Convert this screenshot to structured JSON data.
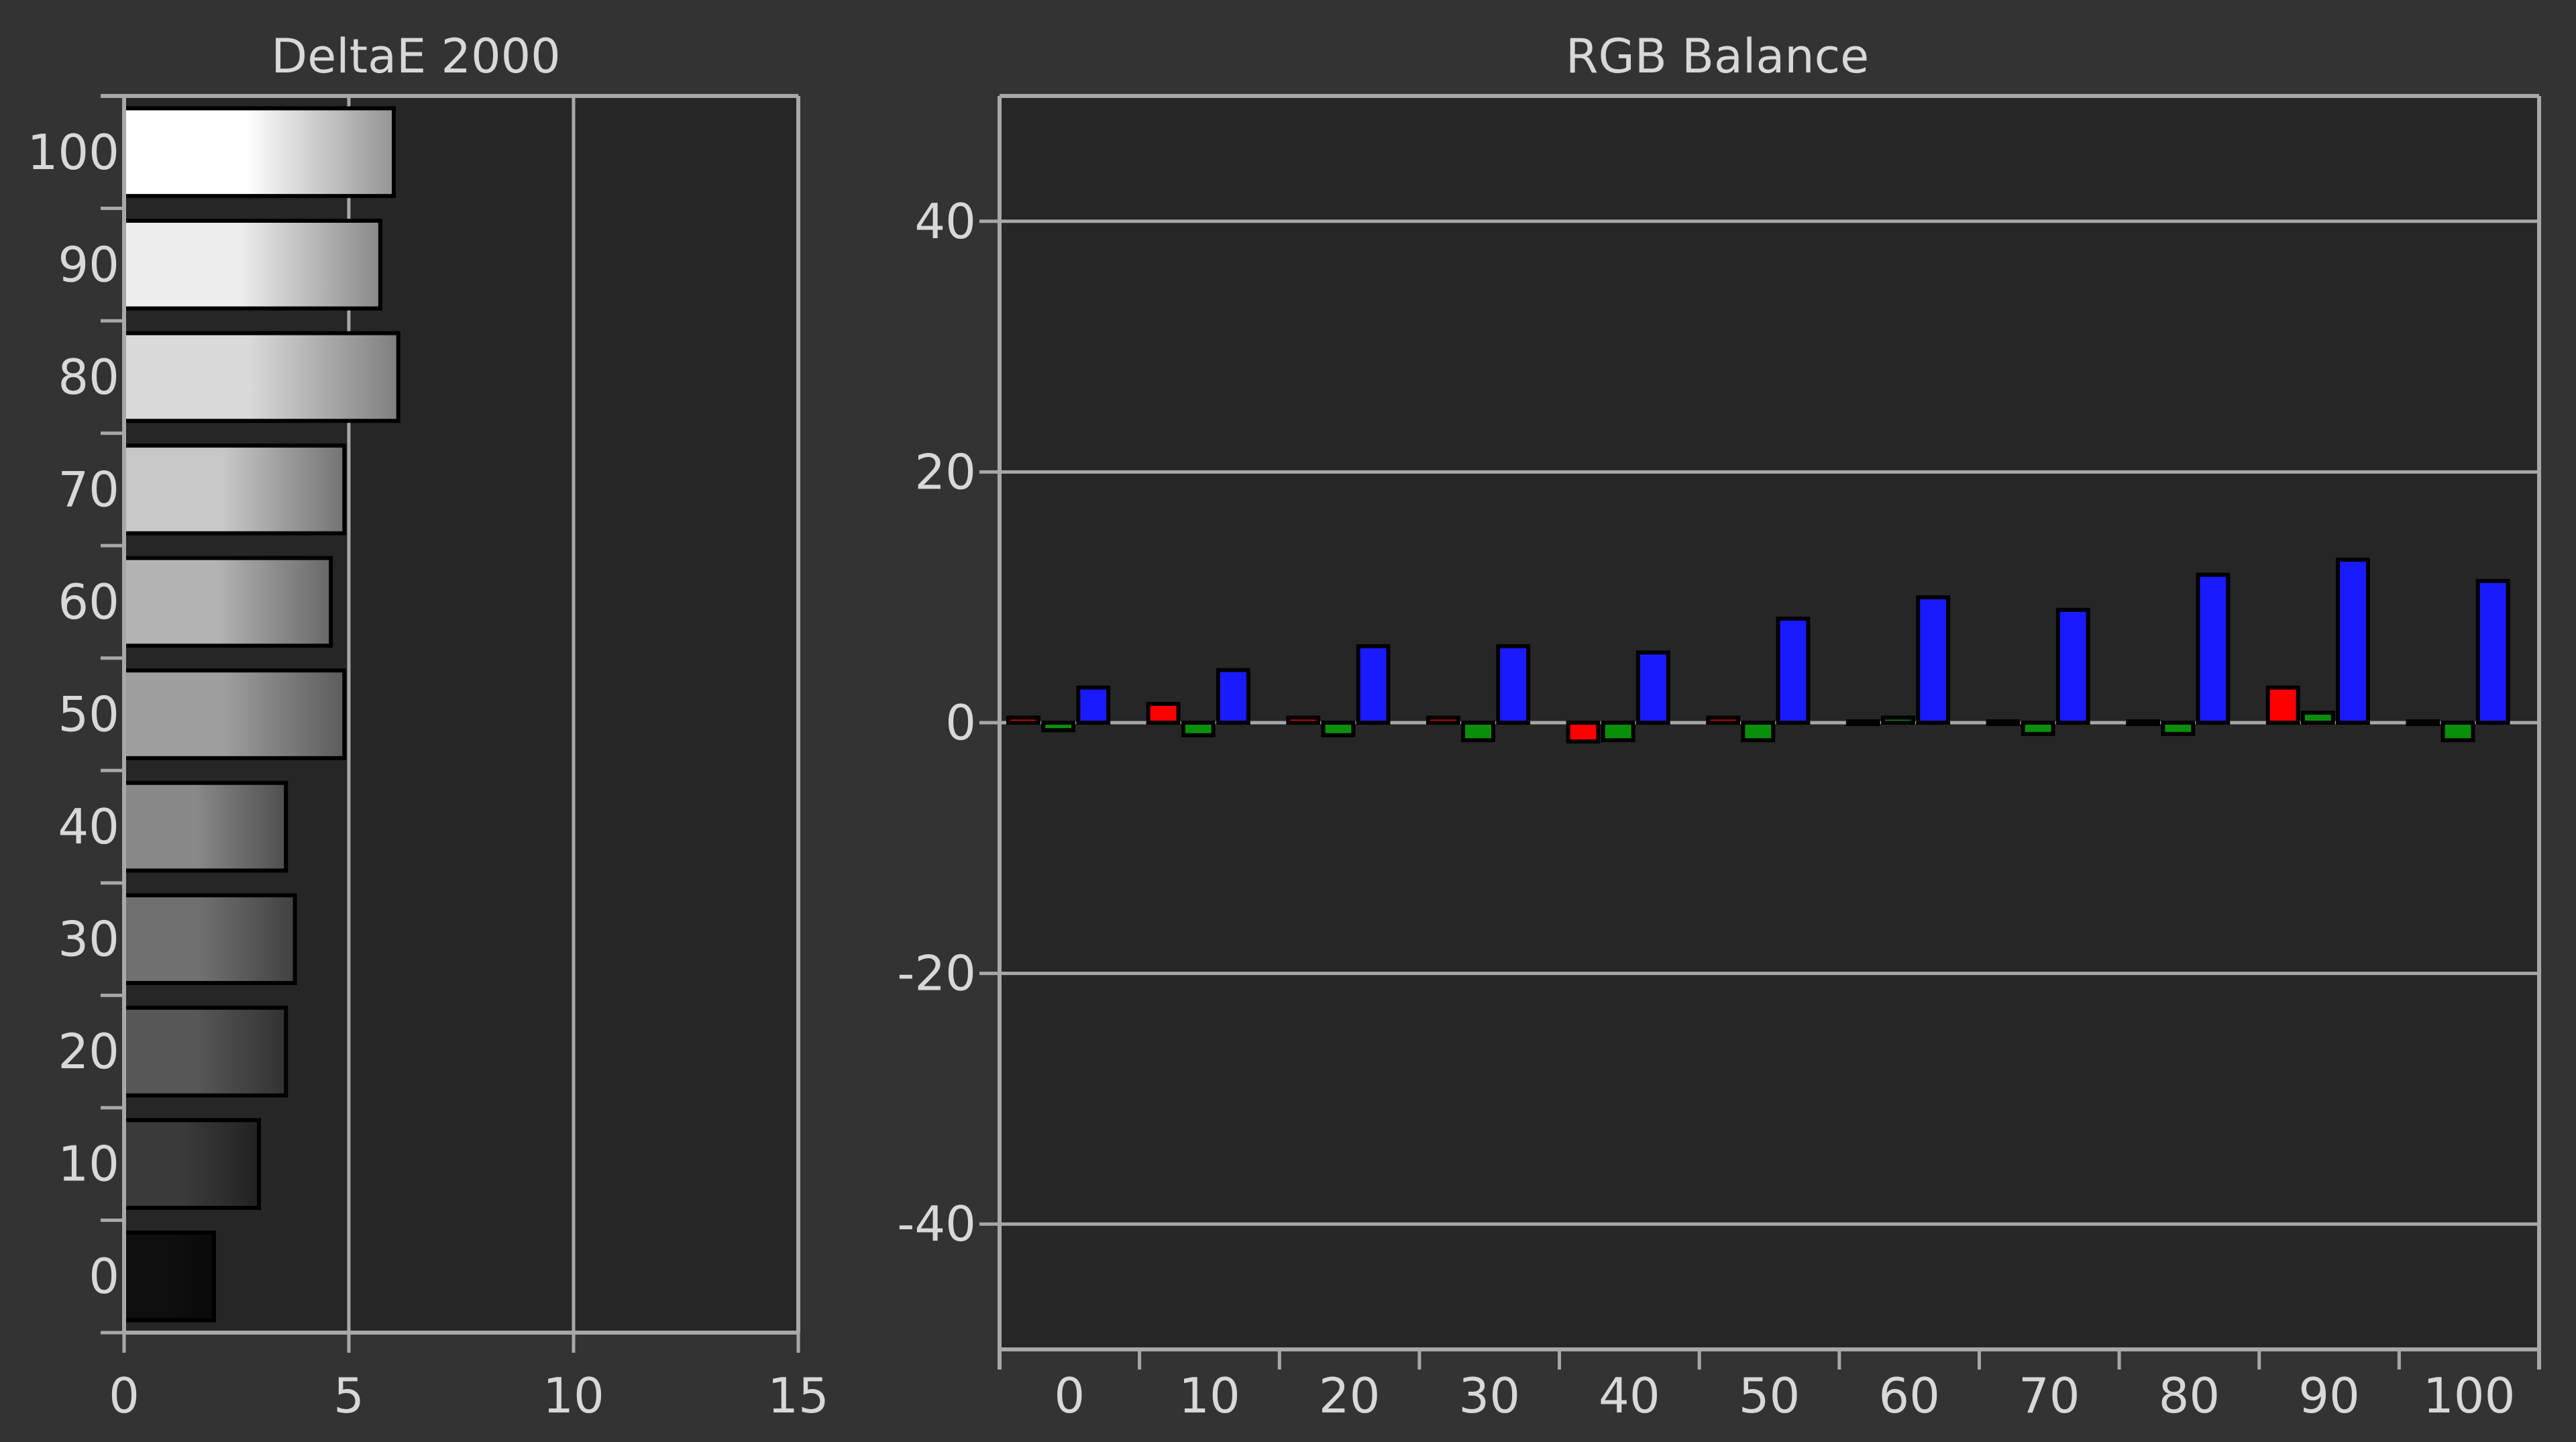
{
  "background": "#333333",
  "plot_background": "#262626",
  "axis_color": "#a8a8a8",
  "text_color": "#d8d8d8",
  "colors": {
    "red": "#ff0000",
    "green": "#0a8f0a",
    "blue": "#1a1aff",
    "outline": "#000000"
  },
  "chart_data": [
    {
      "type": "bar",
      "orientation": "horizontal",
      "title": "DeltaE 2000",
      "xlabel": "",
      "ylabel": "",
      "categories": [
        "100",
        "90",
        "80",
        "70",
        "60",
        "50",
        "40",
        "30",
        "20",
        "10",
        "0"
      ],
      "values": [
        6.0,
        5.7,
        6.1,
        4.9,
        4.6,
        4.9,
        3.6,
        3.8,
        3.6,
        3.0,
        2.0
      ],
      "xlim": [
        0,
        15
      ],
      "xticks": [
        "0",
        "5",
        "10",
        "15"
      ],
      "grid": "vertical lines at 5 and 10",
      "legend": "none",
      "bar_fill": "grayscale gradient matching each stimulus level"
    },
    {
      "type": "bar",
      "title": "RGB Balance",
      "xlabel": "",
      "ylabel": "",
      "categories": [
        "0",
        "10",
        "20",
        "30",
        "40",
        "50",
        "60",
        "70",
        "80",
        "90",
        "100"
      ],
      "ylim": [
        -50,
        50
      ],
      "yticks": [
        "40",
        "20",
        "0",
        "-20",
        "-40"
      ],
      "grid": "horizontal lines at 40, 20, 0, -20, -40",
      "legend": "none",
      "series": [
        {
          "color": "red",
          "values": [
            0.4,
            1.5,
            0.4,
            0.4,
            -1.5,
            0.4,
            0.0,
            0.0,
            0.0,
            2.8,
            0.0
          ]
        },
        {
          "color": "green",
          "values": [
            -0.6,
            -1.0,
            -1.0,
            -1.4,
            -1.4,
            -1.4,
            0.4,
            -0.9,
            -0.9,
            0.8,
            -1.4
          ]
        },
        {
          "color": "blue",
          "values": [
            2.8,
            4.2,
            6.1,
            6.1,
            5.6,
            8.3,
            10.0,
            9.0,
            11.8,
            13.0,
            11.3
          ]
        }
      ]
    }
  ]
}
